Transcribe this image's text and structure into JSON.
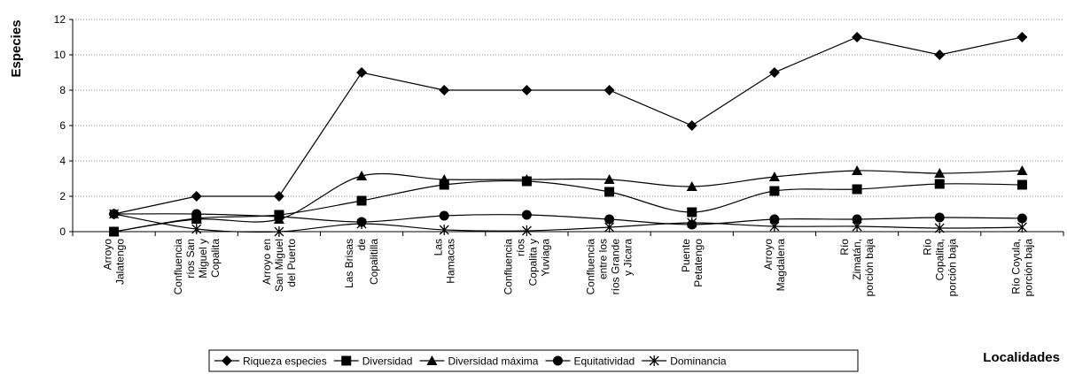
{
  "chart_data": {
    "type": "line",
    "ylabel": "Especies",
    "xlabel": "Localidades",
    "ylim": [
      0,
      12
    ],
    "yticks": [
      0,
      2,
      4,
      6,
      8,
      10,
      12
    ],
    "grid": "horizontal dotted",
    "legend_position": "bottom",
    "categories": [
      [
        "Arroyo",
        "Jalatengo"
      ],
      [
        "Confluencia",
        "ríos San",
        "Miguel y",
        "Copalita"
      ],
      [
        "Arroyo en",
        "San Miguel",
        "del Puerto"
      ],
      [
        "Las Brisas",
        "de",
        "Copalitilla"
      ],
      [
        "Las",
        "Hamacas"
      ],
      [
        "Confluencia",
        "ríos",
        "Copalita y",
        "Yuviaga"
      ],
      [
        "Confluencia",
        "entre los",
        "ríos Grande",
        "y Jícara"
      ],
      [
        "Puente",
        "Petatengo"
      ],
      [
        "Arroyo",
        "Magdalena"
      ],
      [
        "Río",
        "Zimatán,",
        "porción baja"
      ],
      [
        "Río",
        "Copalita,",
        "porción baja"
      ],
      [
        "Río Coyula,",
        "porción baja"
      ]
    ],
    "series": [
      {
        "name": "Riqueza especies",
        "marker": "diamond",
        "smooth": false,
        "values": [
          1,
          2,
          2,
          9,
          8,
          8,
          8,
          6,
          9,
          11,
          10,
          11
        ]
      },
      {
        "name": "Diversidad",
        "marker": "square",
        "smooth": true,
        "values": [
          0,
          0.75,
          0.95,
          1.75,
          2.65,
          2.85,
          2.25,
          1.1,
          2.3,
          2.4,
          2.7,
          2.65
        ]
      },
      {
        "name": "Diversidad máxima",
        "marker": "triangle",
        "smooth": true,
        "values": [
          0,
          0.7,
          0.7,
          3.15,
          2.95,
          2.95,
          2.95,
          2.55,
          3.1,
          3.45,
          3.3,
          3.45
        ]
      },
      {
        "name": "Equitatividad",
        "marker": "circle",
        "smooth": true,
        "values": [
          1,
          1,
          0.85,
          0.55,
          0.9,
          0.95,
          0.7,
          0.4,
          0.7,
          0.7,
          0.8,
          0.75
        ]
      },
      {
        "name": "Dominancia",
        "marker": "star",
        "smooth": true,
        "values": [
          1,
          0.15,
          0.0,
          0.45,
          0.1,
          0.05,
          0.25,
          0.5,
          0.3,
          0.3,
          0.2,
          0.25
        ]
      }
    ]
  }
}
